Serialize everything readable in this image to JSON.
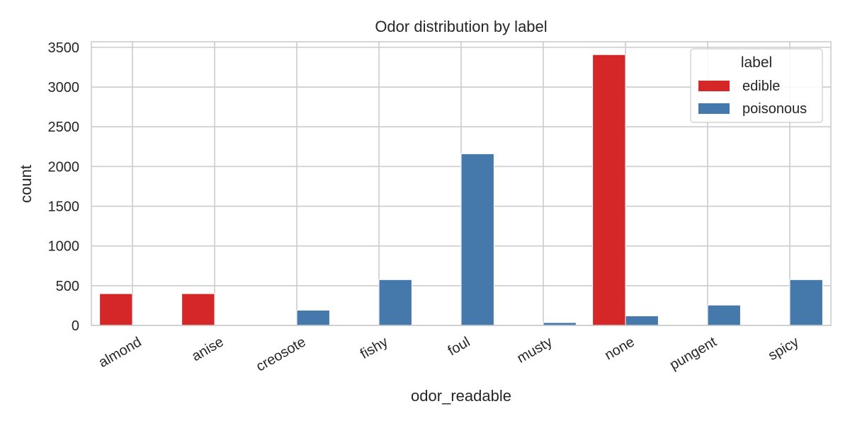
{
  "chart_data": {
    "type": "bar",
    "title": "Odor distribution by label",
    "xlabel": "odor_readable",
    "ylabel": "count",
    "ylim": [
      0,
      3570
    ],
    "yticks": [
      0,
      500,
      1000,
      1500,
      2000,
      2500,
      3000,
      3500
    ],
    "categories": [
      "almond",
      "anise",
      "creosote",
      "fishy",
      "foul",
      "musty",
      "none",
      "pungent",
      "spicy"
    ],
    "series": [
      {
        "name": "edible",
        "color": "#d62728",
        "values": [
          400,
          400,
          0,
          0,
          0,
          0,
          3408,
          0,
          0
        ]
      },
      {
        "name": "poisonous",
        "color": "#4679ab",
        "values": [
          0,
          0,
          192,
          576,
          2160,
          36,
          120,
          256,
          576
        ]
      }
    ],
    "legend": {
      "title": "label",
      "position": "top-right"
    },
    "grid": true
  }
}
